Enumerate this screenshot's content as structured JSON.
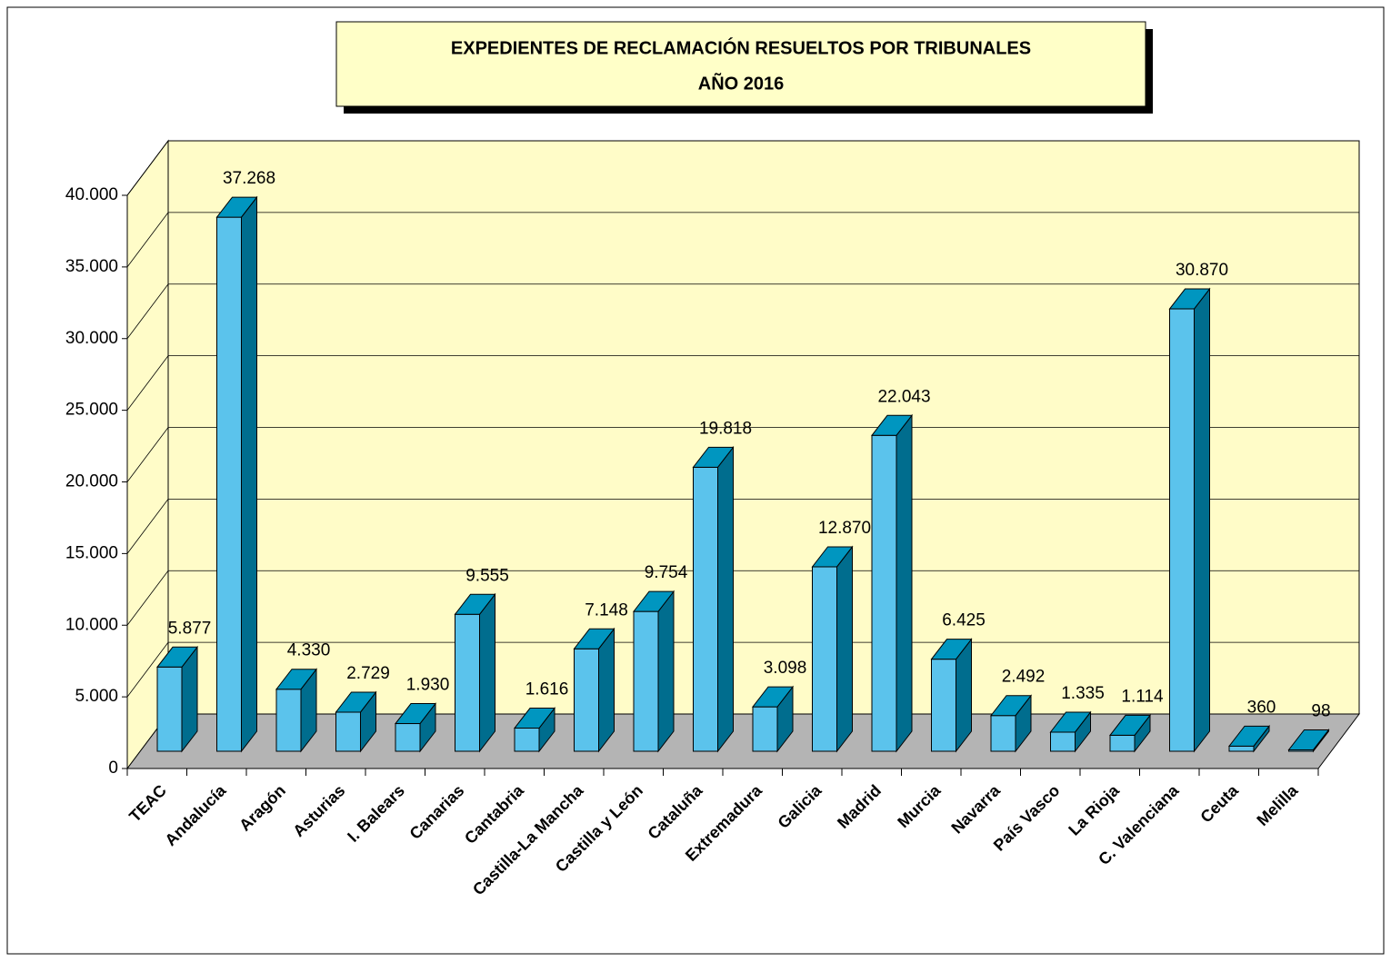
{
  "chart_data": {
    "type": "bar3d",
    "title": "EXPEDIENTES DE RECLAMACIÓN RESUELTOS POR TRIBUNALES",
    "subtitle": "AÑO 2016",
    "categories": [
      "TEAC",
      "Andalucía",
      "Aragón",
      "Asturias",
      "I. Balears",
      "Canarias",
      "Cantabria",
      "Castilla-La Mancha",
      "Castilla y León",
      "Cataluña",
      "Extremadura",
      "Galicia",
      "Madrid",
      "Murcia",
      "Navarra",
      "País Vasco",
      "La Rioja",
      "C. Valenciana",
      "Ceuta",
      "Melilla"
    ],
    "values": [
      5877,
      37268,
      4330,
      2729,
      1930,
      9555,
      1616,
      7148,
      9754,
      19818,
      3098,
      12870,
      22043,
      6425,
      2492,
      1335,
      1114,
      30870,
      360,
      98
    ],
    "value_labels": [
      "5.877",
      "37.268",
      "4.330",
      "2.729",
      "1.930",
      "9.555",
      "1.616",
      "7.148",
      "9.754",
      "19.818",
      "3.098",
      "12.870",
      "22.043",
      "6.425",
      "2.492",
      "1.335",
      "1.114",
      "30.870",
      "360",
      "98"
    ],
    "colors": {
      "front": "#5bc3ec",
      "top": "#0096c0",
      "side": "#006d8e",
      "wall": "#fffcc8",
      "floor": "#b4b4b4"
    },
    "ylim": [
      0,
      40000
    ],
    "yticks": [
      0,
      {
        "value": 5000,
        "label": "5.000"
      },
      {
        "value": 10000,
        "label": "10.000"
      },
      {
        "value": 15000,
        "label": "15.000"
      },
      {
        "value": 20000,
        "label": "20.000"
      },
      {
        "value": 25000,
        "label": "25.000"
      },
      {
        "value": 30000,
        "label": "30.000"
      },
      {
        "value": 35000,
        "label": "35.000"
      },
      {
        "value": 40000,
        "label": "40.000"
      }
    ],
    "grid": true
  }
}
